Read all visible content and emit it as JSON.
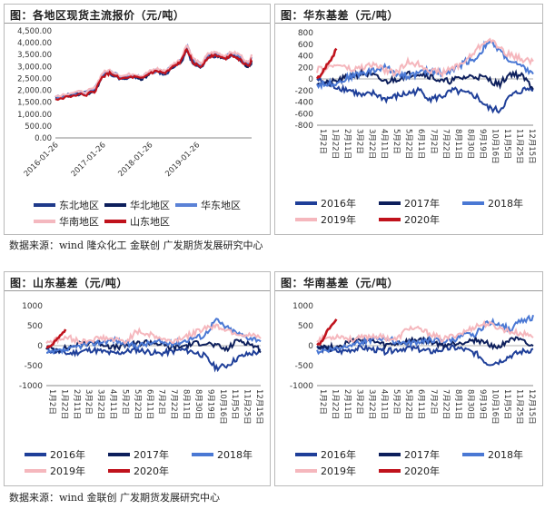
{
  "page": {
    "source_top": "数据来源：wind  隆众化工  金联创  广发期货发展研究中心",
    "source_bottom": "数据来源：wind  金联创  广发期货发展研究中心"
  },
  "colors": {
    "east_north": "#1f3a8a",
    "north": "#0d1f5c",
    "east": "#5b82d6",
    "south_pink": "#f4b8bf",
    "shandong_red": "#c0121c",
    "y2016": "#1f3f99",
    "y2017": "#0d1f5c",
    "y2018": "#4a78d4",
    "y2019": "#f5b7bd",
    "y2020": "#c0121c"
  },
  "chart_data": [
    {
      "id": "price",
      "type": "line",
      "title": "图：各地区现货主流报价（元/吨）",
      "x_ticks": [
        "2016-01-26",
        "2017-01-26",
        "2018-01-26",
        "2019-01-26"
      ],
      "y_ticks": [
        "0.00",
        "500.00",
        "1,000.00",
        "1,500.00",
        "2,000.00",
        "2,500.00",
        "3,000.00",
        "3,500.00",
        "4,000.00",
        "4,500.00"
      ],
      "ylim": [
        0,
        4500
      ],
      "xlim": [
        "2016-01-01",
        "2020-03-01"
      ],
      "anchors_x": [
        "2016-01-01",
        "2016-05-01",
        "2016-09-01",
        "2016-11-01",
        "2017-01-01",
        "2017-03-01",
        "2017-06-01",
        "2017-09-01",
        "2017-11-01",
        "2018-01-01",
        "2018-03-01",
        "2018-05-01",
        "2018-07-01",
        "2018-09-01",
        "2018-10-15",
        "2018-12-01",
        "2019-02-01",
        "2019-04-01",
        "2019-06-01",
        "2019-08-01",
        "2019-10-01",
        "2019-12-01",
        "2020-02-01",
        "2020-03-01"
      ],
      "series": [
        {
          "name": "东北地区",
          "color_key": "east_north",
          "values": [
            1700,
            1850,
            1900,
            2000,
            2650,
            2700,
            2450,
            2550,
            2500,
            2750,
            2800,
            2650,
            3000,
            3150,
            3700,
            3100,
            2950,
            3400,
            3450,
            3350,
            3500,
            3300,
            3000,
            3100
          ]
        },
        {
          "name": "华北地区",
          "color_key": "north",
          "values": [
            1620,
            1800,
            1850,
            1950,
            2600,
            2750,
            2500,
            2600,
            2450,
            2700,
            2850,
            2700,
            2950,
            3200,
            3850,
            3200,
            3000,
            3450,
            3500,
            3300,
            3550,
            3350,
            2950,
            3200
          ]
        },
        {
          "name": "华东地区",
          "color_key": "east",
          "values": [
            1650,
            1850,
            1900,
            2050,
            2700,
            2800,
            2550,
            2650,
            2550,
            2750,
            2850,
            2750,
            3050,
            3250,
            3900,
            3300,
            3050,
            3500,
            3550,
            3400,
            3550,
            3450,
            3100,
            3350
          ]
        },
        {
          "name": "华南地区",
          "color_key": "south_pink",
          "values": [
            1750,
            1900,
            1950,
            2100,
            2750,
            2850,
            2600,
            2700,
            2600,
            2800,
            2900,
            2800,
            3100,
            3300,
            3950,
            3350,
            3100,
            3550,
            3600,
            3450,
            3600,
            3500,
            3150,
            3450
          ]
        },
        {
          "name": "山东地区",
          "color_key": "shandong_red",
          "values": [
            1600,
            1780,
            1830,
            1950,
            2580,
            2720,
            2480,
            2560,
            2470,
            2720,
            2800,
            2700,
            2980,
            3200,
            3800,
            3150,
            2980,
            3420,
            3480,
            3320,
            3500,
            3300,
            2980,
            3250
          ]
        }
      ]
    },
    {
      "id": "basis_east",
      "type": "line",
      "title": "图：华东基差（元/吨）",
      "x_ticks": [
        "1月2日",
        "1月22日",
        "2月11日",
        "3月2日",
        "3月22日",
        "4月11日",
        "5月2日",
        "5月22日",
        "6月11日",
        "7月2日",
        "7月22日",
        "8月11日",
        "8月30日",
        "9月19日",
        "10月16日",
        "11月5日",
        "11月25日",
        "12月15日"
      ],
      "y_ticks": [
        "-800",
        "-600",
        "-400",
        "-200",
        "0",
        "200",
        "400",
        "600",
        "800"
      ],
      "ylim": [
        -800,
        800
      ],
      "series": [
        {
          "name": "2016年",
          "color_key": "y2016",
          "values": [
            0,
            -100,
            -150,
            -200,
            -300,
            -250,
            -350,
            -300,
            -250,
            -200,
            -350,
            -300,
            -200,
            -250,
            -300,
            -500,
            -550,
            -300,
            -200,
            -150
          ]
        },
        {
          "name": "2017年",
          "color_key": "y2017",
          "values": [
            -50,
            -80,
            -20,
            50,
            100,
            50,
            -50,
            0,
            80,
            100,
            50,
            -50,
            -20,
            30,
            50,
            0,
            -100,
            100,
            50,
            -150
          ]
        },
        {
          "name": "2018年",
          "color_key": "y2018",
          "values": [
            -100,
            -80,
            -50,
            50,
            100,
            150,
            200,
            100,
            50,
            100,
            150,
            100,
            150,
            300,
            350,
            650,
            500,
            300,
            200,
            100
          ]
        },
        {
          "name": "2019年",
          "color_key": "y2019",
          "values": [
            150,
            200,
            250,
            150,
            200,
            250,
            150,
            100,
            300,
            250,
            150,
            100,
            200,
            300,
            500,
            700,
            550,
            400,
            350,
            300
          ]
        },
        {
          "name": "2020年",
          "color_key": "y2020",
          "values": [
            0,
            80,
            250,
            350,
            520
          ]
        }
      ]
    },
    {
      "id": "basis_shandong",
      "type": "line",
      "title": "图：山东基差（元/吨）",
      "x_ticks": [
        "1月2日",
        "1月22日",
        "2月11日",
        "3月2日",
        "3月22日",
        "4月11日",
        "5月2日",
        "5月22日",
        "6月11日",
        "7月2日",
        "7月22日",
        "8月11日",
        "8月30日",
        "9月19日",
        "10月16日",
        "11月5日",
        "11月25日",
        "12月15日"
      ],
      "y_ticks": [
        "-1000",
        "-500",
        "0",
        "500",
        "1000"
      ],
      "ylim": [
        -1000,
        1000
      ],
      "series": [
        {
          "name": "2016年",
          "color_key": "y2016",
          "values": [
            -100,
            -150,
            -200,
            -150,
            -100,
            -150,
            -200,
            -150,
            -100,
            -150,
            -200,
            -150,
            -100,
            -150,
            -250,
            -550,
            -500,
            -300,
            -200,
            -150
          ]
        },
        {
          "name": "2017年",
          "color_key": "y2017",
          "values": [
            -50,
            -100,
            -50,
            50,
            100,
            50,
            -50,
            0,
            50,
            100,
            50,
            -50,
            -20,
            50,
            80,
            0,
            -100,
            150,
            50,
            -100
          ]
        },
        {
          "name": "2018年",
          "color_key": "y2018",
          "values": [
            -200,
            -150,
            -100,
            0,
            50,
            100,
            150,
            50,
            0,
            50,
            100,
            50,
            100,
            200,
            250,
            650,
            450,
            300,
            200,
            150
          ]
        },
        {
          "name": "2019年",
          "color_key": "y2019",
          "values": [
            100,
            150,
            200,
            100,
            150,
            200,
            150,
            100,
            350,
            300,
            200,
            100,
            200,
            300,
            450,
            500,
            400,
            300,
            250,
            200
          ]
        },
        {
          "name": "2020年",
          "color_key": "y2020",
          "values": [
            -50,
            0,
            150,
            250,
            400
          ]
        }
      ]
    },
    {
      "id": "basis_south",
      "type": "line",
      "title": "图：华南基差（元/吨）",
      "x_ticks": [
        "1月2日",
        "1月22日",
        "2月11日",
        "3月2日",
        "3月22日",
        "4月11日",
        "5月2日",
        "5月22日",
        "6月11日",
        "7月2日",
        "7月22日",
        "8月11日",
        "8月30日",
        "9月19日",
        "10月16日",
        "11月5日",
        "11月25日",
        "12月15日"
      ],
      "y_ticks": [
        "-1000",
        "-500",
        "0",
        "500",
        "1000"
      ],
      "ylim": [
        -1000,
        1000
      ],
      "series": [
        {
          "name": "2016年",
          "color_key": "y2016",
          "values": [
            -50,
            -100,
            -150,
            -100,
            -50,
            -100,
            -150,
            -100,
            -50,
            -100,
            -150,
            -100,
            -50,
            -100,
            -200,
            -450,
            -400,
            -250,
            -150,
            -100
          ]
        },
        {
          "name": "2017年",
          "color_key": "y2017",
          "values": [
            0,
            -50,
            0,
            100,
            150,
            100,
            0,
            50,
            100,
            150,
            100,
            0,
            50,
            100,
            150,
            50,
            -50,
            200,
            100,
            -50
          ]
        },
        {
          "name": "2018年",
          "color_key": "y2018",
          "values": [
            -150,
            -100,
            -50,
            50,
            100,
            150,
            200,
            100,
            50,
            100,
            150,
            100,
            150,
            250,
            300,
            600,
            550,
            400,
            650,
            700
          ]
        },
        {
          "name": "2019年",
          "color_key": "y2019",
          "values": [
            150,
            200,
            250,
            150,
            200,
            250,
            200,
            150,
            450,
            400,
            300,
            150,
            250,
            350,
            500,
            550,
            450,
            350,
            300,
            250
          ]
        },
        {
          "name": "2020年",
          "color_key": "y2020",
          "values": [
            0,
            100,
            350,
            500,
            650
          ]
        }
      ]
    }
  ]
}
